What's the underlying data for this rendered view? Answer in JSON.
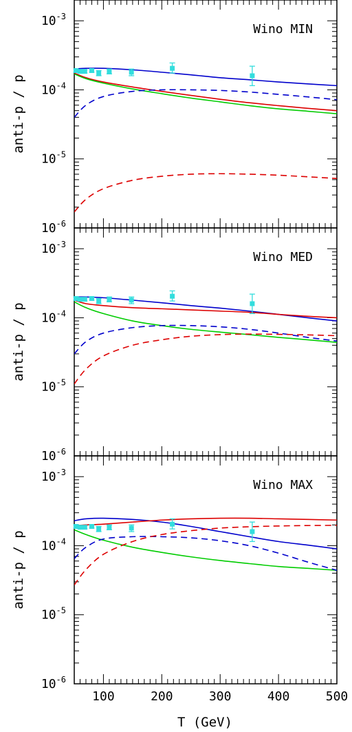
{
  "chart_data": {
    "type": "line",
    "xlabel": "T (GeV)",
    "ylabel": "anti-p / p",
    "xlim": [
      50,
      500
    ],
    "ylim": [
      1e-06,
      0.002
    ],
    "yscale": "log",
    "x_ticks": [
      100,
      200,
      300,
      400,
      500
    ],
    "y_tick_labels": [
      {
        "value": 1e-06,
        "base": "10",
        "exp": "-6"
      },
      {
        "value": 1e-05,
        "base": "10",
        "exp": "-5"
      },
      {
        "value": 0.0001,
        "base": "10",
        "exp": "-4"
      },
      {
        "value": 0.001,
        "base": "10",
        "exp": "-3"
      }
    ],
    "colors": {
      "blue": "#0000cc",
      "red": "#dd0000",
      "green": "#00cc00",
      "data": "#33dddd"
    },
    "data_points": [
      {
        "x": 53,
        "y": 0.00019,
        "lo": 0.00018,
        "hi": 0.0002
      },
      {
        "x": 60,
        "y": 0.000185,
        "lo": 0.000175,
        "hi": 0.000195
      },
      {
        "x": 68,
        "y": 0.000185,
        "lo": 0.000175,
        "hi": 0.000195
      },
      {
        "x": 80,
        "y": 0.00019,
        "lo": 0.00018,
        "hi": 0.0002
      },
      {
        "x": 92,
        "y": 0.000175,
        "lo": 0.00016,
        "hi": 0.00019
      },
      {
        "x": 110,
        "y": 0.000185,
        "lo": 0.00017,
        "hi": 0.0002
      },
      {
        "x": 148,
        "y": 0.00018,
        "lo": 0.00016,
        "hi": 0.0002
      },
      {
        "x": 218,
        "y": 0.000205,
        "lo": 0.000175,
        "hi": 0.000245
      },
      {
        "x": 355,
        "y": 0.00016,
        "lo": 0.000115,
        "hi": 0.00022
      }
    ],
    "panels": [
      {
        "title": "Wino MIN",
        "x": [
          50,
          70,
          100,
          150,
          200,
          250,
          300,
          350,
          400,
          450,
          500
        ],
        "series": [
          {
            "style": "solid",
            "color": "blue",
            "values": [
              0.0002,
              0.000205,
              0.000205,
              0.000195,
              0.00018,
              0.000165,
              0.00015,
              0.00014,
              0.00013,
              0.000122,
              0.000115
            ]
          },
          {
            "style": "solid",
            "color": "red",
            "values": [
              0.000175,
              0.00015,
              0.00013,
              0.00011,
              9.5e-05,
              8.3e-05,
              7.3e-05,
              6.5e-05,
              5.9e-05,
              5.4e-05,
              5e-05
            ]
          },
          {
            "style": "solid",
            "color": "green",
            "values": [
              0.00017,
              0.000145,
              0.000125,
              0.000103,
              8.8e-05,
              7.6e-05,
              6.7e-05,
              5.9e-05,
              5.3e-05,
              4.9e-05,
              4.5e-05
            ]
          },
          {
            "style": "dashed",
            "color": "blue",
            "values": [
              4e-05,
              6e-05,
              8e-05,
              9.5e-05,
              0.0001,
              0.0001,
              9.8e-05,
              9.3e-05,
              8.6e-05,
              7.9e-05,
              7.2e-05
            ]
          },
          {
            "style": "dashed",
            "color": "red",
            "values": [
              1.7e-06,
              2.6e-06,
              3.7e-06,
              4.9e-06,
              5.6e-06,
              6e-06,
              6.1e-06,
              6e-06,
              5.8e-06,
              5.5e-06,
              5.2e-06
            ]
          }
        ]
      },
      {
        "title": "Wino MED",
        "x": [
          50,
          70,
          100,
          150,
          200,
          250,
          300,
          350,
          400,
          450,
          500
        ],
        "series": [
          {
            "style": "solid",
            "color": "blue",
            "values": [
              0.0002,
              0.0002,
              0.000195,
              0.00018,
              0.000165,
              0.00015,
              0.000138,
              0.000125,
              0.000112,
              0.0001,
              9e-05
            ]
          },
          {
            "style": "solid",
            "color": "red",
            "values": [
              0.00018,
              0.00016,
              0.00015,
              0.00014,
              0.000135,
              0.00013,
              0.000125,
              0.00012,
              0.000112,
              0.000105,
              0.0001
            ]
          },
          {
            "style": "solid",
            "color": "green",
            "values": [
              0.00017,
              0.00014,
              0.000115,
              9e-05,
              7.7e-05,
              6.8e-05,
              6.2e-05,
              5.7e-05,
              5.2e-05,
              4.8e-05,
              4.4e-05
            ]
          },
          {
            "style": "dashed",
            "color": "blue",
            "values": [
              3e-05,
              4.5e-05,
              6e-05,
              7.2e-05,
              7.7e-05,
              7.7e-05,
              7.4e-05,
              6.8e-05,
              6e-05,
              5.2e-05,
              4.6e-05
            ]
          },
          {
            "style": "dashed",
            "color": "red",
            "values": [
              1.1e-05,
              1.8e-05,
              2.8e-05,
              4e-05,
              4.8e-05,
              5.4e-05,
              5.7e-05,
              5.8e-05,
              5.75e-05,
              5.65e-05,
              5.5e-05
            ]
          }
        ]
      },
      {
        "title": "Wino MAX",
        "x": [
          50,
          70,
          100,
          150,
          200,
          250,
          300,
          350,
          400,
          450,
          500
        ],
        "series": [
          {
            "style": "solid",
            "color": "blue",
            "values": [
              0.00023,
              0.000245,
              0.00025,
              0.00024,
              0.00022,
              0.00019,
              0.00016,
              0.000135,
              0.000115,
              0.000102,
              9e-05
            ]
          },
          {
            "style": "solid",
            "color": "red",
            "values": [
              0.000195,
              0.0002,
              0.000205,
              0.00022,
              0.000235,
              0.000245,
              0.00025,
              0.00025,
              0.000245,
              0.00024,
              0.000235
            ]
          },
          {
            "style": "solid",
            "color": "green",
            "values": [
              0.00017,
              0.000145,
              0.00012,
              9.5e-05,
              8e-05,
              6.9e-05,
              6.1e-05,
              5.5e-05,
              5e-05,
              4.7e-05,
              4.4e-05
            ]
          },
          {
            "style": "dashed",
            "color": "blue",
            "values": [
              6.5e-05,
              9.5e-05,
              0.000125,
              0.000135,
              0.000135,
              0.00013,
              0.000118,
              0.0001,
              7.8e-05,
              5.8e-05,
              4.4e-05
            ]
          },
          {
            "style": "dashed",
            "color": "red",
            "values": [
              2.7e-05,
              4.5e-05,
              7.5e-05,
              0.000115,
              0.000145,
              0.000165,
              0.00018,
              0.000188,
              0.000193,
              0.000196,
              0.000197
            ]
          }
        ]
      }
    ]
  }
}
